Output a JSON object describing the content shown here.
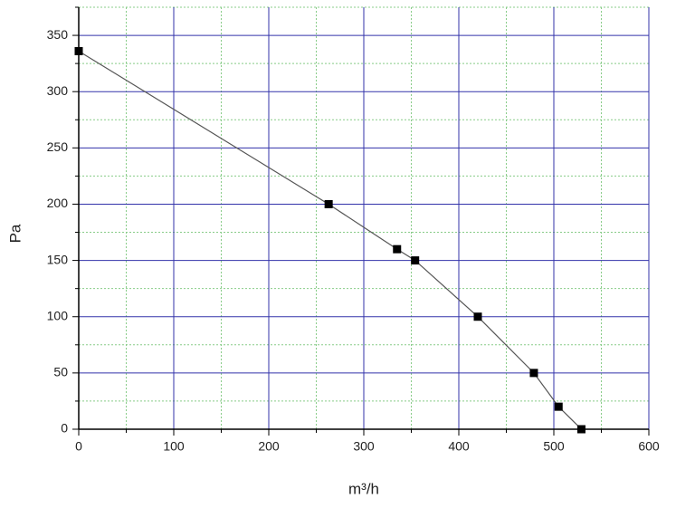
{
  "chart_data": {
    "type": "line",
    "x": [
      0,
      263,
      335,
      354,
      420,
      479,
      505,
      529
    ],
    "values": [
      336,
      200,
      160,
      150,
      100,
      50,
      20,
      0
    ],
    "color": "#555555",
    "marker_color": "#000000",
    "xlabel": "m³/h",
    "ylabel": "Pa",
    "xlim": [
      0,
      600
    ],
    "ylim": [
      0,
      375
    ],
    "xticks": [
      0,
      100,
      200,
      300,
      400,
      500,
      600
    ],
    "yticks": [
      0,
      50,
      100,
      150,
      200,
      250,
      300,
      350
    ],
    "xminorticks": [
      50,
      150,
      250,
      350,
      450,
      550
    ],
    "yminorticks": [
      25,
      75,
      125,
      175,
      225,
      275,
      325,
      375
    ],
    "grid": true,
    "grid_color": "#3333aa",
    "minor_grid_color": "#88cc88"
  }
}
